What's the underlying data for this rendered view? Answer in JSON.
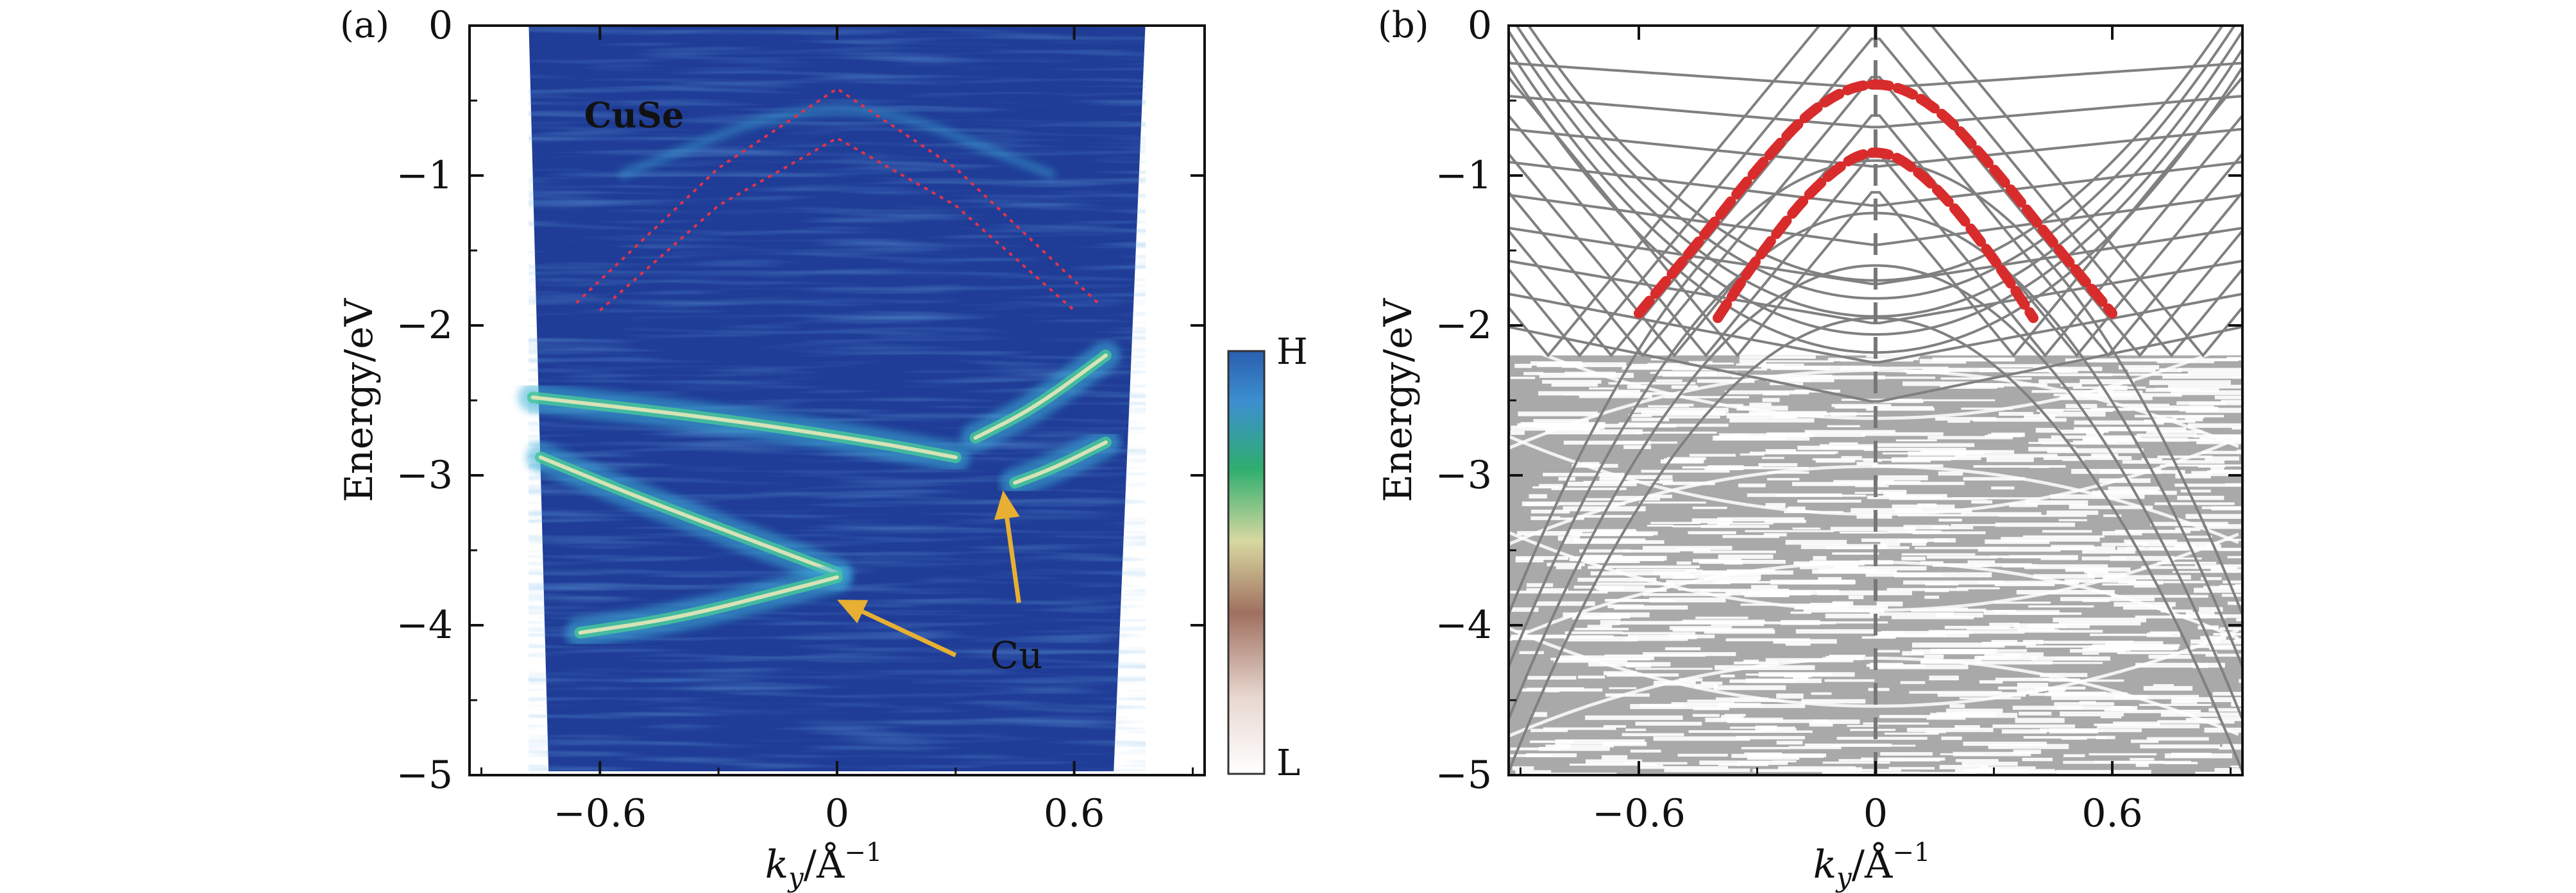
{
  "chart_data": [
    {
      "panel": "(a)",
      "type": "heatmap",
      "xlabel": "k_y/Å^-1",
      "xlabel_main": "k",
      "xlabel_sub": "y",
      "xlabel_unit": "/Å",
      "xlabel_sup": "−1",
      "ylabel": "Energy/eV",
      "xlim": [
        -0.93,
        0.93
      ],
      "ylim": [
        -5,
        0
      ],
      "xticks": [
        -0.6,
        0,
        0.6
      ],
      "xtick_labels": [
        "−0.6",
        "0",
        "0.6"
      ],
      "yticks": [
        0,
        -1,
        -2,
        -3,
        -4,
        -5
      ],
      "ytick_labels": [
        "0",
        "−1",
        "−2",
        "−3",
        "−4",
        "−5"
      ],
      "colorbar": {
        "top_label": "H",
        "bottom_label": "L",
        "colors": [
          "#2a5fb0",
          "#3ca0d0",
          "#2fae6e",
          "#d8d8a0",
          "#a07060",
          "#e8d8d0",
          "#ffffff"
        ]
      },
      "annotations": [
        {
          "text": "CuSe",
          "x": -0.64,
          "y": -0.6,
          "color": "#d82c2c"
        },
        {
          "text": "Cu",
          "x": 0.42,
          "y": -4.2,
          "color": "#e8b032"
        }
      ],
      "arrows": [
        {
          "from": [
            0.3,
            -4.2
          ],
          "to": [
            0.0,
            -3.83
          ],
          "color": "#e8b032"
        },
        {
          "from": [
            0.46,
            -3.85
          ],
          "to": [
            0.42,
            -3.1
          ],
          "color": "#e8b032"
        }
      ],
      "cuse_bands_dotted": [
        {
          "name": "CuSe upper",
          "x": [
            -0.66,
            -0.3,
            0,
            0.3,
            0.66
          ],
          "y": [
            -1.85,
            -0.95,
            -0.42,
            -0.95,
            -1.85
          ]
        },
        {
          "name": "CuSe lower",
          "x": [
            -0.6,
            -0.3,
            0,
            0.3,
            0.6
          ],
          "y": [
            -1.9,
            -1.2,
            -0.75,
            -1.2,
            -1.9
          ]
        }
      ],
      "bright_bands": [
        {
          "x": [
            -0.77,
            -0.3,
            0.1,
            0.3
          ],
          "y": [
            -2.48,
            -2.62,
            -2.78,
            -2.88
          ]
        },
        {
          "x": [
            0.35,
            0.5,
            0.68
          ],
          "y": [
            -2.75,
            -2.55,
            -2.2
          ]
        },
        {
          "x": [
            -0.75,
            -0.5,
            -0.2,
            0.0
          ],
          "y": [
            -2.88,
            -3.15,
            -3.45,
            -3.65
          ]
        },
        {
          "x": [
            -0.65,
            -0.4,
            -0.1,
            0.0
          ],
          "y": [
            -4.05,
            -3.95,
            -3.75,
            -3.68
          ]
        },
        {
          "x": [
            0.45,
            0.55,
            0.68
          ],
          "y": [
            -3.05,
            -2.95,
            -2.78
          ]
        }
      ]
    },
    {
      "panel": "(b)",
      "type": "line",
      "xlabel": "k_y/Å^-1",
      "xlabel_main": "k",
      "xlabel_sub": "y",
      "xlabel_unit": "/Å",
      "xlabel_sup": "−1",
      "ylabel": "Energy/eV",
      "xlim": [
        -0.93,
        0.93
      ],
      "ylim": [
        -5,
        0
      ],
      "xticks": [
        -0.6,
        0,
        0.6
      ],
      "xtick_labels": [
        "−0.6",
        "0",
        "0.6"
      ],
      "yticks": [
        0,
        -1,
        -2,
        -3,
        -4,
        -5
      ],
      "ytick_labels": [
        "0",
        "−1",
        "−2",
        "−3",
        "−4",
        "−5"
      ],
      "band_color": "#808080",
      "highlight_color": "#d82c2c",
      "vertical_dashed_x": 0,
      "highlighted_bands": [
        {
          "x": [
            -0.6,
            -0.45,
            -0.3,
            -0.15,
            0,
            0.15,
            0.3,
            0.45,
            0.6
          ],
          "y": [
            -1.92,
            -1.45,
            -0.95,
            -0.52,
            -0.35,
            -0.52,
            -0.95,
            -1.45,
            -1.92
          ]
        },
        {
          "x": [
            -0.4,
            -0.3,
            -0.15,
            0,
            0.15,
            0.3,
            0.4
          ],
          "y": [
            -1.95,
            -1.55,
            -1.05,
            -0.78,
            -1.05,
            -1.55,
            -1.95
          ]
        }
      ],
      "dense_region_top": -2.2
    }
  ]
}
